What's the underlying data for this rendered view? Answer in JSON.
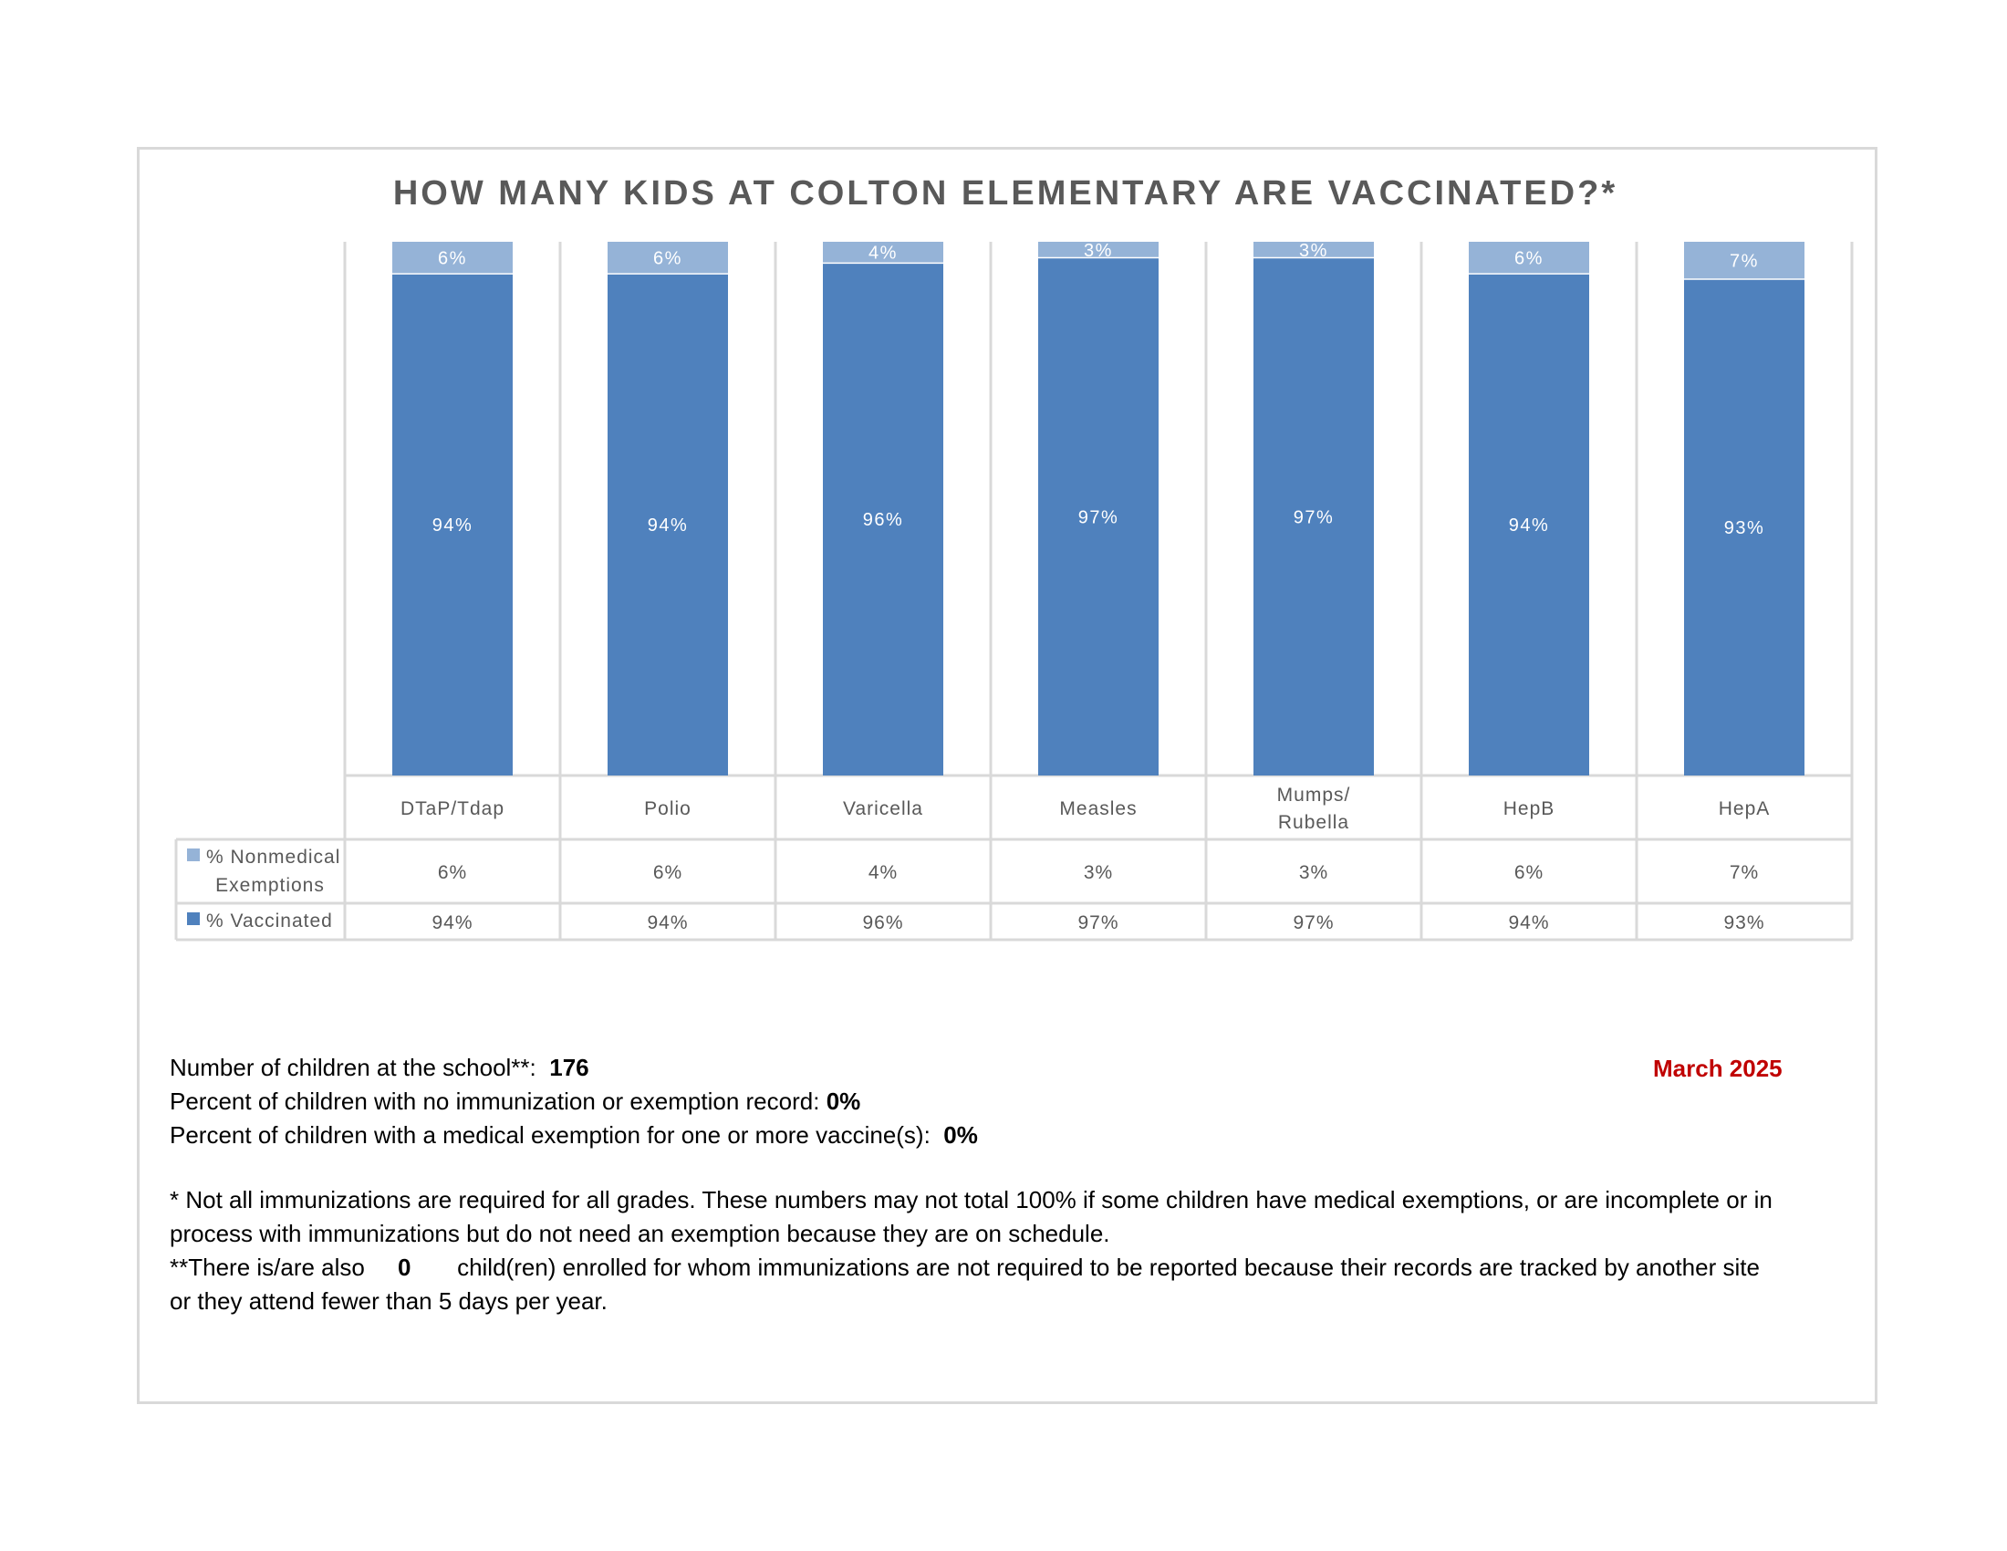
{
  "chart_data": {
    "type": "bar",
    "stacked": true,
    "title": "HOW MANY KIDS AT COLTON ELEMENTARY ARE VACCINATED?*",
    "categories": [
      "DTaP/Tdap",
      "Polio",
      "Varicella",
      "Measles",
      "Mumps/\nRubella",
      "HepB",
      "HepA"
    ],
    "category_lines": [
      [
        "DTaP/Tdap"
      ],
      [
        "Polio"
      ],
      [
        "Varicella"
      ],
      [
        "Measles"
      ],
      [
        "Mumps/",
        "Rubella"
      ],
      [
        "HepB"
      ],
      [
        "HepA"
      ]
    ],
    "series": [
      {
        "name": "% Vaccinated",
        "legend_lines": [
          "% Vaccinated"
        ],
        "values": [
          94,
          94,
          96,
          97,
          97,
          94,
          93
        ],
        "labels": [
          "94%",
          "94%",
          "96%",
          "97%",
          "97%",
          "94%",
          "93%"
        ],
        "color": "#4f81bd"
      },
      {
        "name": "% Nonmedical Exemptions",
        "legend_lines": [
          "% Nonmedical",
          "Exemptions"
        ],
        "values": [
          6,
          6,
          4,
          3,
          3,
          6,
          7
        ],
        "labels": [
          "6%",
          "6%",
          "4%",
          "3%",
          "3%",
          "6%",
          "7%"
        ],
        "color": "#95b3d7"
      }
    ],
    "ylim": [
      0,
      100
    ],
    "grid": false,
    "legend": "data-table"
  },
  "notes": {
    "children_label": "Number of children at the school**:",
    "children_value": "176",
    "date": "March 2025",
    "no_record_label": "Percent of children with no immunization or exemption record:",
    "no_record_value": "0%",
    "medical_label": "Percent of children with a medical exemption for one or more vaccine(s):",
    "medical_value": "0%",
    "footnote1_line1": "* Not all immunizations are required for all grades. These numbers may not total 100% if some children have medical exemptions, or are incomplete or in",
    "footnote1_line2": "process with immunizations but do not need an exemption because they are on schedule.",
    "footnote2_prefix": "**There is/are also",
    "footnote2_value": "0",
    "footnote2_suffix": "child(ren) enrolled for whom immunizations are not required to be reported because their records are tracked by another site",
    "footnote2_line2": "or they attend fewer than 5 days per year."
  }
}
